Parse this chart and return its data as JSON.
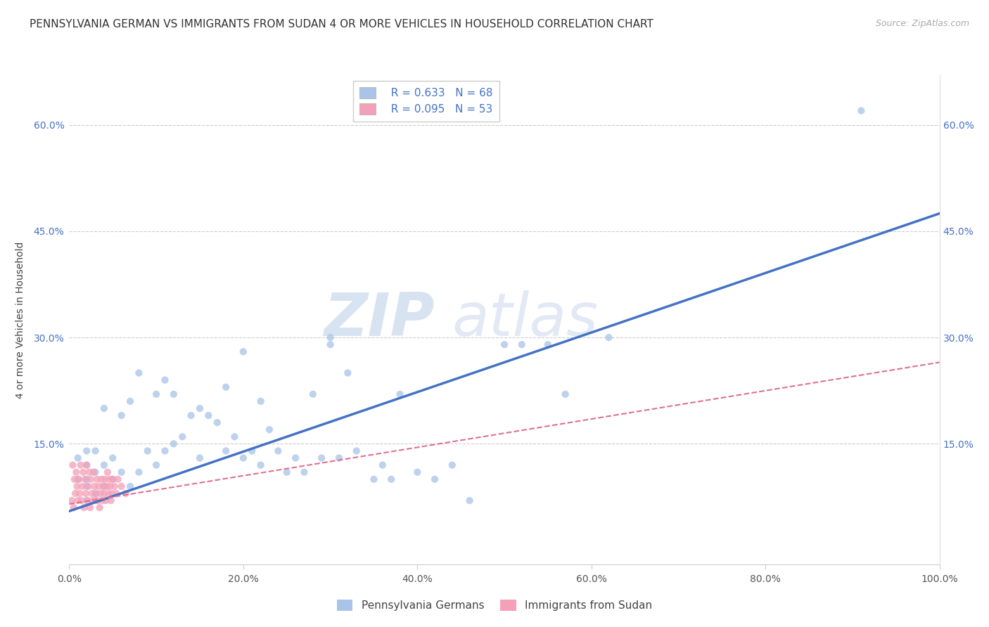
{
  "title": "PENNSYLVANIA GERMAN VS IMMIGRANTS FROM SUDAN 4 OR MORE VEHICLES IN HOUSEHOLD CORRELATION CHART",
  "source": "Source: ZipAtlas.com",
  "ylabel": "4 or more Vehicles in Household",
  "xmin": 0.0,
  "xmax": 1.0,
  "ymin": -0.02,
  "ymax": 0.67,
  "xtick_labels": [
    "0.0%",
    "20.0%",
    "40.0%",
    "60.0%",
    "80.0%",
    "100.0%"
  ],
  "xtick_vals": [
    0.0,
    0.2,
    0.4,
    0.6,
    0.8,
    1.0
  ],
  "ytick_labels": [
    "15.0%",
    "30.0%",
    "45.0%",
    "60.0%"
  ],
  "ytick_vals": [
    0.15,
    0.3,
    0.45,
    0.6
  ],
  "series1_color": "#a8c4e8",
  "series2_color": "#f4a0b8",
  "line1_color": "#4472c4",
  "line2_color": "#e07090",
  "R1": 0.633,
  "N1": 68,
  "R2": 0.095,
  "N2": 53,
  "legend_label1": "Pennsylvania Germans",
  "legend_label2": "Immigrants from Sudan",
  "watermark_zip": "ZIP",
  "watermark_atlas": "atlas",
  "title_fontsize": 11,
  "label_fontsize": 10,
  "tick_fontsize": 10,
  "scatter1_x": [
    0.01,
    0.01,
    0.02,
    0.02,
    0.02,
    0.02,
    0.02,
    0.03,
    0.03,
    0.03,
    0.04,
    0.04,
    0.04,
    0.05,
    0.05,
    0.06,
    0.06,
    0.07,
    0.07,
    0.08,
    0.08,
    0.09,
    0.1,
    0.1,
    0.11,
    0.11,
    0.12,
    0.12,
    0.13,
    0.14,
    0.15,
    0.15,
    0.16,
    0.17,
    0.18,
    0.18,
    0.19,
    0.2,
    0.2,
    0.21,
    0.22,
    0.22,
    0.23,
    0.24,
    0.25,
    0.26,
    0.27,
    0.28,
    0.29,
    0.3,
    0.3,
    0.31,
    0.32,
    0.33,
    0.35,
    0.36,
    0.37,
    0.38,
    0.4,
    0.42,
    0.44,
    0.46,
    0.5,
    0.52,
    0.55,
    0.57,
    0.62,
    0.91
  ],
  "scatter1_y": [
    0.1,
    0.13,
    0.07,
    0.09,
    0.1,
    0.12,
    0.14,
    0.08,
    0.11,
    0.14,
    0.09,
    0.12,
    0.2,
    0.1,
    0.13,
    0.11,
    0.19,
    0.09,
    0.21,
    0.11,
    0.25,
    0.14,
    0.12,
    0.22,
    0.14,
    0.24,
    0.15,
    0.22,
    0.16,
    0.19,
    0.13,
    0.2,
    0.19,
    0.18,
    0.14,
    0.23,
    0.16,
    0.13,
    0.28,
    0.14,
    0.12,
    0.21,
    0.17,
    0.14,
    0.11,
    0.13,
    0.11,
    0.22,
    0.13,
    0.29,
    0.3,
    0.13,
    0.25,
    0.14,
    0.1,
    0.12,
    0.1,
    0.22,
    0.11,
    0.1,
    0.12,
    0.07,
    0.29,
    0.29,
    0.29,
    0.22,
    0.3,
    0.62
  ],
  "scatter2_x": [
    0.003,
    0.004,
    0.005,
    0.006,
    0.007,
    0.008,
    0.009,
    0.01,
    0.011,
    0.012,
    0.013,
    0.014,
    0.015,
    0.016,
    0.017,
    0.018,
    0.019,
    0.02,
    0.021,
    0.022,
    0.023,
    0.024,
    0.025,
    0.026,
    0.027,
    0.028,
    0.029,
    0.03,
    0.031,
    0.032,
    0.033,
    0.034,
    0.035,
    0.036,
    0.037,
    0.038,
    0.039,
    0.04,
    0.041,
    0.042,
    0.043,
    0.044,
    0.045,
    0.046,
    0.047,
    0.048,
    0.049,
    0.05,
    0.052,
    0.054,
    0.056,
    0.06,
    0.065
  ],
  "scatter2_y": [
    0.07,
    0.12,
    0.06,
    0.1,
    0.08,
    0.11,
    0.09,
    0.07,
    0.1,
    0.08,
    0.12,
    0.07,
    0.09,
    0.11,
    0.06,
    0.1,
    0.08,
    0.12,
    0.07,
    0.09,
    0.11,
    0.06,
    0.1,
    0.08,
    0.07,
    0.11,
    0.09,
    0.07,
    0.08,
    0.1,
    0.07,
    0.09,
    0.06,
    0.08,
    0.1,
    0.07,
    0.09,
    0.08,
    0.1,
    0.07,
    0.09,
    0.11,
    0.08,
    0.1,
    0.09,
    0.07,
    0.08,
    0.1,
    0.09,
    0.08,
    0.1,
    0.09,
    0.08
  ],
  "line1_x": [
    0.0,
    1.0
  ],
  "line1_y": [
    0.055,
    0.475
  ],
  "line2_x": [
    0.0,
    1.0
  ],
  "line2_y": [
    0.065,
    0.265
  ]
}
